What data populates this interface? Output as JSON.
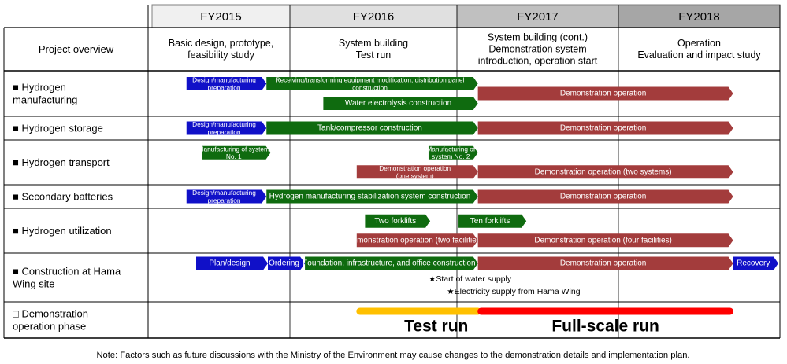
{
  "years": [
    {
      "label": "FY2015",
      "fill": "#f0f0f0",
      "overview": [
        "Basic design, prototype,",
        "feasibility study"
      ]
    },
    {
      "label": "FY2016",
      "fill": "#e0e0e0",
      "overview": [
        "System building",
        "Test run"
      ]
    },
    {
      "label": "FY2017",
      "fill": "#c0c0c0",
      "overview": [
        "System building (cont.)",
        "Demonstration system",
        "introduction, operation start"
      ]
    },
    {
      "label": "FY2018",
      "fill": "#a6a6a6",
      "overview": [
        "Operation",
        "Evaluation and impact study"
      ]
    }
  ],
  "overview_header": "Project overview",
  "colors": {
    "blue": "#1010c8",
    "green": "#0f6b0f",
    "red": "#a33c3c",
    "yellow": "#ffc000",
    "redline": "#ff0000"
  },
  "rows": [
    {
      "label": [
        "■  Hydrogen",
        "manufacturing"
      ],
      "bars": [
        {
          "text": [
            "Design/manufacturing",
            "preparation"
          ],
          "color": "blue",
          "start": 0.25,
          "end": 0.83,
          "lane": 0,
          "lanes": 2
        },
        {
          "text": [
            "Receiving/transforming equipment modification, distribution panel",
            "construction"
          ],
          "color": "green",
          "start": 0.83,
          "end": 2.13,
          "lane": 0,
          "lanes": 2
        },
        {
          "text": [
            "Water electrolysis construction"
          ],
          "color": "green",
          "start": 1.2,
          "end": 2.13,
          "lane": 1,
          "lanes": 2
        },
        {
          "text": [
            "Demonstration operation"
          ],
          "color": "red",
          "start": 2.13,
          "end": 3.71,
          "lane": 0.5,
          "lanes": 2
        }
      ]
    },
    {
      "label": [
        "■  Hydrogen storage"
      ],
      "bars": [
        {
          "text": [
            "Design/manufacturing",
            "preparation"
          ],
          "color": "blue",
          "start": 0.25,
          "end": 0.83,
          "lane": 0,
          "lanes": 1
        },
        {
          "text": [
            "Tank/compressor construction"
          ],
          "color": "green",
          "start": 0.83,
          "end": 2.13,
          "lane": 0,
          "lanes": 1
        },
        {
          "text": [
            "Demonstration operation"
          ],
          "color": "red",
          "start": 2.13,
          "end": 3.71,
          "lane": 0,
          "lanes": 1
        }
      ]
    },
    {
      "label": [
        "■  Hydrogen transport"
      ],
      "bars": [
        {
          "text": [
            "Manufacturing of system",
            "No. 1"
          ],
          "color": "green",
          "start": 0.36,
          "end": 0.86,
          "lane": 0,
          "lanes": 2
        },
        {
          "text": [
            "Manufacturing of",
            "system No. 2"
          ],
          "color": "green",
          "start": 1.83,
          "end": 2.13,
          "lane": 0,
          "lanes": 2
        },
        {
          "text": [
            "Demonstration operation",
            "(one system)"
          ],
          "color": "red",
          "start": 1.4,
          "end": 2.13,
          "lane": 1,
          "lanes": 2
        },
        {
          "text": [
            "Demonstration operation (two systems)"
          ],
          "color": "red",
          "start": 2.13,
          "end": 3.71,
          "lane": 1,
          "lanes": 2
        }
      ]
    },
    {
      "label": [
        "■  Secondary batteries"
      ],
      "bars": [
        {
          "text": [
            "Design/manufacturing",
            "preparation"
          ],
          "color": "blue",
          "start": 0.25,
          "end": 0.83,
          "lane": 0,
          "lanes": 1
        },
        {
          "text": [
            "Hydrogen manufacturing stabilization system construction"
          ],
          "color": "green",
          "start": 0.83,
          "end": 2.13,
          "lane": 0,
          "lanes": 1
        },
        {
          "text": [
            "Demonstration operation"
          ],
          "color": "red",
          "start": 2.13,
          "end": 3.71,
          "lane": 0,
          "lanes": 1
        }
      ]
    },
    {
      "label": [
        "■  Hydrogen utilization"
      ],
      "bars": [
        {
          "text": [
            "Two forklifts"
          ],
          "color": "green",
          "start": 1.45,
          "end": 1.84,
          "lane": 0,
          "lanes": 2
        },
        {
          "text": [
            "Ten forklifts"
          ],
          "color": "green",
          "start": 2.01,
          "end": 2.43,
          "lane": 0,
          "lanes": 2
        },
        {
          "text": [
            "Demonstration operation (two facilities)"
          ],
          "color": "red",
          "start": 1.4,
          "end": 2.13,
          "lane": 1,
          "lanes": 2
        },
        {
          "text": [
            "Demonstration operation (four facilities)"
          ],
          "color": "red",
          "start": 2.13,
          "end": 3.71,
          "lane": 1,
          "lanes": 2
        }
      ]
    },
    {
      "label": [
        "■  Construction at Hama",
        "Wing site"
      ],
      "bars": [
        {
          "text": [
            "Plan/design"
          ],
          "color": "blue",
          "start": 0.32,
          "end": 0.84,
          "lane": 0,
          "lanes": 3
        },
        {
          "text": [
            "Ordering"
          ],
          "color": "blue",
          "start": 0.84,
          "end": 1.09,
          "lane": 0,
          "lanes": 3
        },
        {
          "text": [
            "Foundation, infrastructure, and office construction"
          ],
          "color": "green",
          "start": 1.09,
          "end": 2.13,
          "lane": 0,
          "lanes": 3
        },
        {
          "text": [
            "Demonstration operation"
          ],
          "color": "red",
          "start": 2.13,
          "end": 3.71,
          "lane": 0,
          "lanes": 3
        },
        {
          "text": [
            "Recovery"
          ],
          "color": "blue",
          "start": 3.71,
          "end": 3.99,
          "lane": 0,
          "lanes": 3
        }
      ],
      "notes": [
        {
          "text": "★Start of water supply",
          "at": 1.83,
          "lane": 1
        },
        {
          "text": "★Electricity supply from Hama Wing",
          "at": 1.94,
          "lane": 2
        }
      ]
    },
    {
      "label": [
        "□  Demonstration",
        "operation phase"
      ],
      "phases": [
        {
          "text": "Test run",
          "color": "yellow",
          "start": 1.4,
          "end": 2.13
        },
        {
          "text": "Full-scale run",
          "color": "redline",
          "start": 2.13,
          "end": 3.71
        }
      ]
    }
  ],
  "note": "Note: Factors such as future discussions with the Ministry of the Environment may cause changes to the demonstration details and implementation plan."
}
